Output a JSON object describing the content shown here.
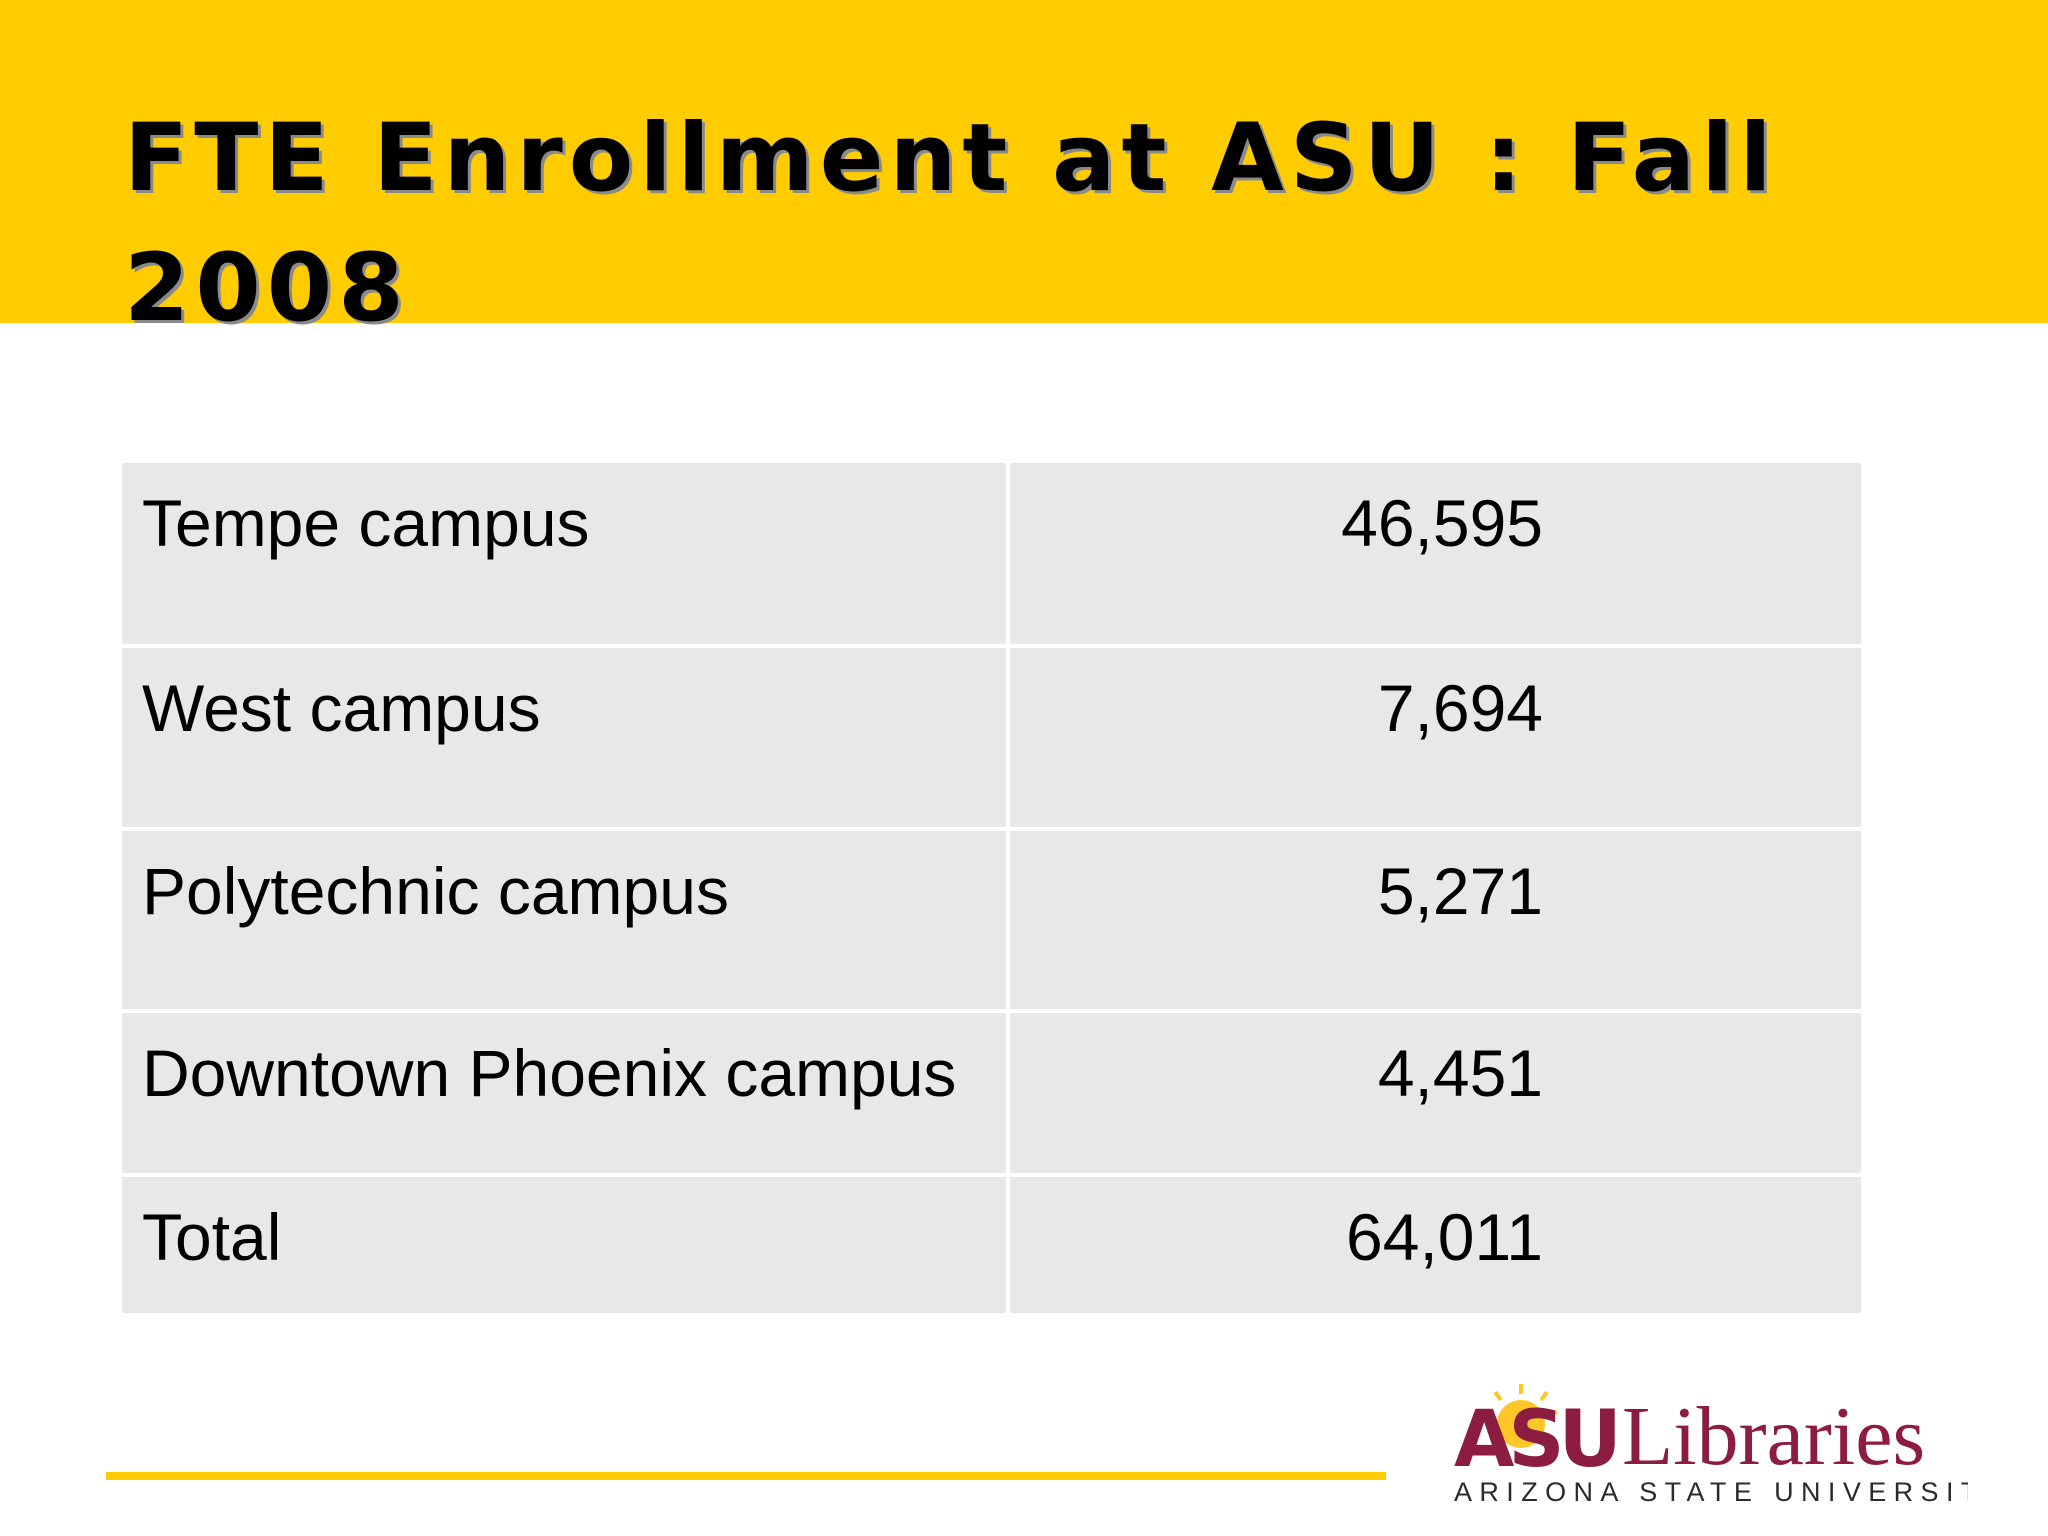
{
  "slide": {
    "title": "FTE Enrollment at ASU : Fall 2008",
    "title_band_color": "#FFCC00"
  },
  "table": {
    "rows": [
      {
        "label": "Tempe campus",
        "value": "46,595"
      },
      {
        "label": "West campus",
        "value": "7,694"
      },
      {
        "label": "Polytechnic campus",
        "value": "5,271"
      },
      {
        "label": "Downtown Phoenix campus",
        "value": "4,451"
      },
      {
        "label": "Total",
        "value": "64,011"
      }
    ],
    "cell_color": "#E8E7EA"
  },
  "logo": {
    "asu": "ASU",
    "libraries": "Libraries",
    "tagline": "ARIZONA STATE UNIVERSITY",
    "maroon": "#8C1D40",
    "gold": "#FFC627"
  },
  "footer": {
    "rule_color": "#FFCC00"
  }
}
